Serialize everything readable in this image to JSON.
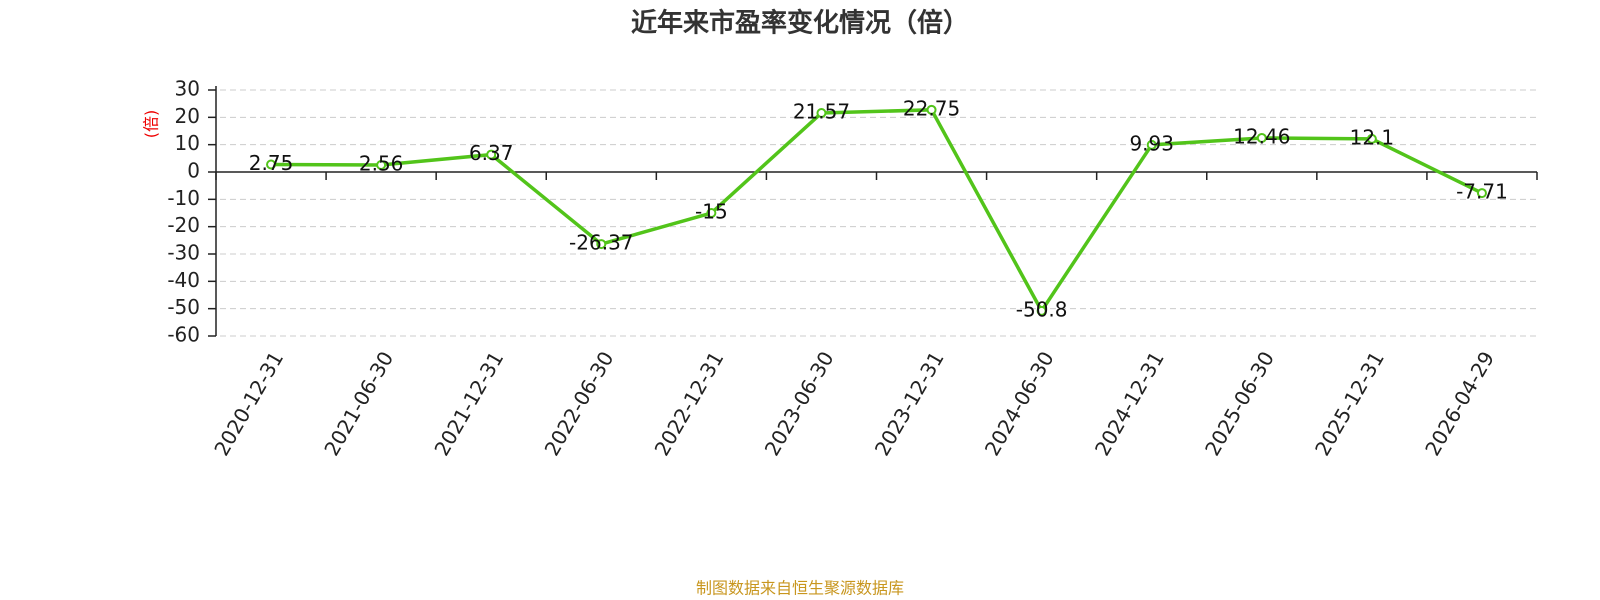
{
  "chart_data": {
    "type": "line",
    "title": "近年来市盈率变化情况（倍）",
    "y_label": "(倍)",
    "source": "制图数据来自恒生聚源数据库",
    "categories": [
      "2020-12-31",
      "2021-06-30",
      "2021-12-31",
      "2022-06-30",
      "2022-12-31",
      "2023-06-30",
      "2023-12-31",
      "2024-06-30",
      "2024-12-31",
      "2025-06-30",
      "2025-12-31",
      "2026-04-29"
    ],
    "values": [
      2.75,
      2.56,
      6.37,
      -26.37,
      -15,
      21.57,
      22.75,
      -50.8,
      9.93,
      12.46,
      12.1,
      -7.71
    ],
    "color": "#52c41a",
    "ylim": [
      -60,
      30
    ],
    "yticks": [
      -60,
      -50,
      -40,
      -30,
      -20,
      -10,
      0,
      10,
      20,
      30
    ],
    "grid": true
  }
}
